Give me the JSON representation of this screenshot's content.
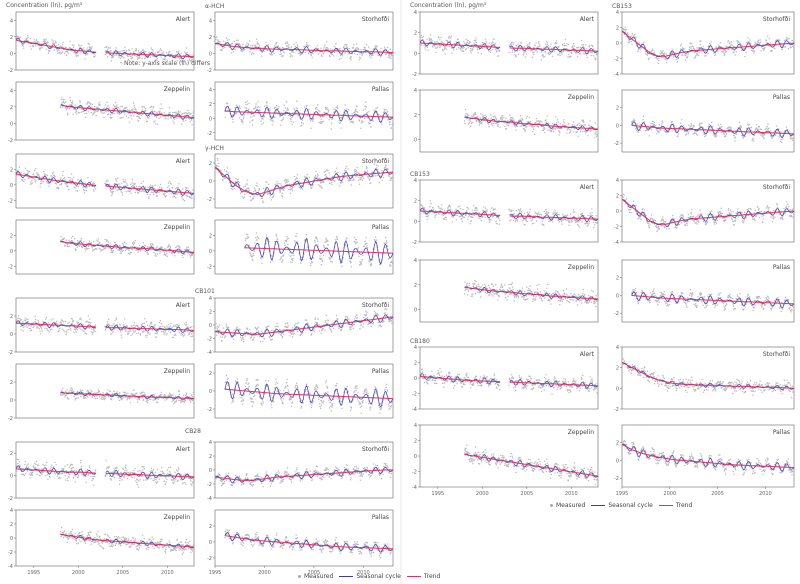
{
  "headers": {
    "left": "Concentration (ln), pg/m³",
    "right": "Concentration (ln), pg/m³"
  },
  "note": "Note: y-axis scale (ln) differs",
  "legend": {
    "measured": "Measured",
    "seasonal": "Seasonal cycle",
    "trend": "Trend"
  },
  "colors": {
    "measured": "#b8b8b8",
    "seasonal": "#3a3ab0",
    "trend": "#e0306a",
    "frame": "#666666"
  },
  "chart_data": [
    {
      "type": "line",
      "compound": "α-HCH",
      "station": "Alert",
      "xlim": [
        1993,
        2013
      ],
      "ylim": [
        -2,
        5
      ],
      "yticks": [
        -2,
        0,
        2,
        4
      ],
      "trend": [
        1.6,
        1.4,
        1.2,
        1.0,
        0.8,
        0.6,
        0.4,
        0.3,
        0.2,
        0.1,
        0.05,
        0.0,
        -0.05,
        -0.1,
        -0.15,
        -0.2,
        -0.25,
        -0.3,
        -0.35,
        -0.4
      ],
      "gap": [
        2002,
        2003
      ],
      "seasonal_amplitude": 0.3,
      "noise": 0.5
    },
    {
      "type": "line",
      "compound": "α-HCH",
      "station": "Zeppelin",
      "xlim": [
        1993,
        2013
      ],
      "ylim": [
        -2,
        5
      ],
      "yticks": [
        -2,
        0,
        2,
        4
      ],
      "start": 1998,
      "trend": [
        2.2,
        2.0,
        1.9,
        1.8,
        1.7,
        1.6,
        1.5,
        1.4,
        1.3,
        1.2,
        1.1,
        1.0,
        0.9,
        0.8,
        0.7
      ],
      "seasonal_amplitude": 0.3,
      "noise": 0.6
    },
    {
      "type": "line",
      "compound": "α-HCH",
      "station": "Storhofði",
      "xlim": [
        1995,
        2013
      ],
      "ylim": [
        -2,
        5
      ],
      "yticks": [
        -2,
        0,
        2,
        4
      ],
      "trend": [
        1.2,
        1.0,
        0.8,
        0.7,
        0.6,
        0.55,
        0.5,
        0.5,
        0.45,
        0.4,
        0.35,
        0.3,
        0.3,
        0.25,
        0.2,
        0.2,
        0.15,
        0.1
      ],
      "seasonal_amplitude": 0.4,
      "noise": 0.5
    },
    {
      "type": "line",
      "compound": "α-HCH",
      "station": "Pallas",
      "xlim": [
        1995,
        2013
      ],
      "ylim": [
        -3,
        5
      ],
      "yticks": [
        -2,
        0,
        2,
        4
      ],
      "start": 1996,
      "trend": [
        1.0,
        0.9,
        0.85,
        0.8,
        0.75,
        0.7,
        0.65,
        0.6,
        0.55,
        0.5,
        0.45,
        0.4,
        0.35,
        0.3,
        0.25,
        0.2,
        0.15
      ],
      "seasonal_amplitude": 0.8,
      "noise": 0.7
    },
    {
      "type": "line",
      "compound": "γ-HCH",
      "station": "Alert",
      "xlim": [
        1993,
        2013
      ],
      "ylim": [
        -3,
        4
      ],
      "yticks": [
        -2,
        0,
        2
      ],
      "trend": [
        1.4,
        1.2,
        1.0,
        0.8,
        0.6,
        0.45,
        0.3,
        0.15,
        0.0,
        -0.1,
        -0.2,
        -0.3,
        -0.4,
        -0.5,
        -0.6,
        -0.7,
        -0.8,
        -0.9,
        -1.0,
        -1.1
      ],
      "gap": [
        2002,
        2003
      ],
      "seasonal_amplitude": 0.4,
      "noise": 0.6
    },
    {
      "type": "line",
      "compound": "γ-HCH",
      "station": "Zeppelin",
      "xlim": [
        1993,
        2013
      ],
      "ylim": [
        -3,
        4
      ],
      "yticks": [
        -2,
        0,
        2
      ],
      "start": 1998,
      "trend": [
        1.2,
        1.0,
        0.9,
        0.8,
        0.7,
        0.6,
        0.5,
        0.4,
        0.35,
        0.3,
        0.2,
        0.1,
        0.0,
        -0.1,
        -0.2
      ],
      "seasonal_amplitude": 0.3,
      "noise": 0.5
    },
    {
      "type": "line",
      "compound": "γ-HCH",
      "station": "Storhofði",
      "xlim": [
        1995,
        2013
      ],
      "ylim": [
        -3,
        3
      ],
      "yticks": [
        -2,
        0,
        2
      ],
      "trend": [
        1.5,
        0.5,
        -0.5,
        -1.2,
        -1.5,
        -1.2,
        -0.8,
        -0.5,
        -0.3,
        -0.1,
        0.1,
        0.3,
        0.5,
        0.6,
        0.7,
        0.8,
        0.9,
        1.0
      ],
      "seasonal_amplitude": 0.5,
      "noise": 0.5
    },
    {
      "type": "line",
      "compound": "γ-HCH",
      "station": "Pallas",
      "xlim": [
        1995,
        2013
      ],
      "ylim": [
        -3,
        4
      ],
      "yticks": [
        -2,
        0,
        2
      ],
      "start": 1998,
      "trend": [
        0.4,
        0.35,
        0.3,
        0.25,
        0.2,
        0.15,
        0.1,
        0.05,
        0.0,
        -0.05,
        -0.1,
        -0.15,
        -0.2,
        -0.25,
        -0.3
      ],
      "seasonal_amplitude": 1.5,
      "noise": 0.5
    },
    {
      "type": "line",
      "compound": "CB101",
      "station": "Alert",
      "xlim": [
        1993,
        2013
      ],
      "ylim": [
        -2,
        4
      ],
      "yticks": [
        -2,
        0,
        2
      ],
      "trend": [
        1.2,
        1.15,
        1.1,
        1.05,
        1.0,
        0.95,
        0.9,
        0.85,
        0.8,
        0.75,
        0.7,
        0.7,
        0.65,
        0.6,
        0.6,
        0.55,
        0.5,
        0.5,
        0.45,
        0.4
      ],
      "gap": [
        2002,
        2003
      ],
      "seasonal_amplitude": 0.3,
      "noise": 0.6
    },
    {
      "type": "line",
      "compound": "CB101",
      "station": "Zeppelin",
      "xlim": [
        1993,
        2013
      ],
      "ylim": [
        -2,
        4
      ],
      "yticks": [
        -2,
        0,
        2
      ],
      "start": 1998,
      "trend": [
        0.8,
        0.75,
        0.7,
        0.65,
        0.6,
        0.55,
        0.5,
        0.45,
        0.4,
        0.35,
        0.3,
        0.3,
        0.25,
        0.2,
        0.2
      ],
      "seasonal_amplitude": 0.2,
      "noise": 0.4
    },
    {
      "type": "line",
      "compound": "CB101",
      "station": "Storhofði",
      "xlim": [
        1995,
        2013
      ],
      "ylim": [
        -4,
        4
      ],
      "yticks": [
        -4,
        -2,
        0,
        2,
        4
      ],
      "trend": [
        -1.0,
        -1.1,
        -1.2,
        -1.3,
        -1.4,
        -1.2,
        -1.0,
        -0.8,
        -0.6,
        -0.4,
        -0.2,
        0.0,
        0.2,
        0.4,
        0.6,
        0.8,
        1.0,
        1.2
      ],
      "seasonal_amplitude": 0.6,
      "noise": 0.6
    },
    {
      "type": "line",
      "compound": "CB101",
      "station": "Pallas",
      "xlim": [
        1995,
        2013
      ],
      "ylim": [
        -3,
        3
      ],
      "yticks": [
        -2,
        0,
        2
      ],
      "start": 1996,
      "trend": [
        0.2,
        0.1,
        0.0,
        -0.1,
        -0.2,
        -0.3,
        -0.35,
        -0.4,
        -0.45,
        -0.5,
        -0.55,
        -0.6,
        -0.65,
        -0.7,
        -0.75,
        -0.8,
        -0.85
      ],
      "seasonal_amplitude": 1.0,
      "noise": 0.5
    },
    {
      "type": "line",
      "compound": "CB153",
      "station": "Alert",
      "xlim": [
        1993,
        2013
      ],
      "ylim": [
        -2,
        4
      ],
      "yticks": [
        -2,
        0,
        2,
        4
      ],
      "trend": [
        1.0,
        0.95,
        0.9,
        0.85,
        0.8,
        0.75,
        0.7,
        0.65,
        0.6,
        0.55,
        0.5,
        0.5,
        0.45,
        0.4,
        0.4,
        0.35,
        0.3,
        0.3,
        0.25,
        0.2
      ],
      "gap": [
        2002,
        2003
      ],
      "seasonal_amplitude": 0.3,
      "noise": 0.5
    },
    {
      "type": "line",
      "compound": "CB153",
      "station": "Zeppelin",
      "xlim": [
        1993,
        2013
      ],
      "ylim": [
        -1,
        4
      ],
      "yticks": [
        0,
        2,
        4
      ],
      "start": 1998,
      "trend": [
        1.8,
        1.7,
        1.6,
        1.5,
        1.45,
        1.4,
        1.3,
        1.25,
        1.2,
        1.1,
        1.05,
        1.0,
        0.95,
        0.9,
        0.85
      ],
      "seasonal_amplitude": 0.2,
      "noise": 0.4
    },
    {
      "type": "line",
      "compound": "CB153",
      "station": "Storhofði",
      "xlim": [
        1995,
        2013
      ],
      "ylim": [
        -4,
        4
      ],
      "yticks": [
        -4,
        -2,
        0,
        2,
        4
      ],
      "trend": [
        1.5,
        0.5,
        -0.5,
        -1.5,
        -1.8,
        -1.5,
        -1.2,
        -1.0,
        -0.9,
        -0.8,
        -0.7,
        -0.6,
        -0.5,
        -0.4,
        -0.3,
        -0.2,
        -0.1,
        0.0
      ],
      "seasonal_amplitude": 0.5,
      "noise": 0.5
    },
    {
      "type": "line",
      "compound": "CB153",
      "station": "Pallas",
      "xlim": [
        1995,
        2013
      ],
      "ylim": [
        -3,
        4
      ],
      "yticks": [
        -2,
        0,
        2
      ],
      "start": 1996,
      "trend": [
        0.0,
        -0.1,
        -0.2,
        -0.3,
        -0.35,
        -0.4,
        -0.45,
        -0.5,
        -0.55,
        -0.6,
        -0.65,
        -0.7,
        -0.75,
        -0.8,
        -0.85,
        -0.9,
        -0.95
      ],
      "seasonal_amplitude": 0.5,
      "noise": 0.4
    },
    {
      "type": "line",
      "compound": "CB28",
      "station": "Alert",
      "xlim": [
        1993,
        2013
      ],
      "ylim": [
        -2,
        3
      ],
      "yticks": [
        -2,
        0,
        2
      ],
      "trend": [
        0.6,
        0.55,
        0.5,
        0.45,
        0.4,
        0.35,
        0.3,
        0.3,
        0.25,
        0.2,
        0.2,
        0.15,
        0.1,
        0.1,
        0.05,
        0.0,
        0.0,
        -0.05,
        -0.1,
        -0.1
      ],
      "gap": [
        2002,
        2003
      ],
      "seasonal_amplitude": 0.3,
      "noise": 0.5
    },
    {
      "type": "line",
      "compound": "CB28",
      "station": "Zeppelin",
      "xlim": [
        1993,
        2013
      ],
      "ylim": [
        -4,
        4
      ],
      "yticks": [
        -4,
        -2,
        0,
        2,
        4
      ],
      "start": 1998,
      "trend": [
        0.5,
        0.3,
        0.1,
        -0.1,
        -0.3,
        -0.4,
        -0.5,
        -0.6,
        -0.7,
        -0.8,
        -0.9,
        -1.0,
        -1.1,
        -1.2,
        -1.3
      ],
      "seasonal_amplitude": 0.3,
      "noise": 0.6
    },
    {
      "type": "line",
      "compound": "CB28",
      "station": "Storhofði",
      "xlim": [
        1995,
        2013
      ],
      "ylim": [
        -4,
        4
      ],
      "yticks": [
        -4,
        -2,
        0,
        2,
        4
      ],
      "trend": [
        -1.0,
        -1.2,
        -1.4,
        -1.5,
        -1.4,
        -1.2,
        -1.0,
        -0.9,
        -0.8,
        -0.7,
        -0.6,
        -0.5,
        -0.4,
        -0.3,
        -0.2,
        -0.1,
        0.0,
        0.0
      ],
      "seasonal_amplitude": 0.5,
      "noise": 0.5
    },
    {
      "type": "line",
      "compound": "CB28",
      "station": "Pallas",
      "xlim": [
        1995,
        2013
      ],
      "ylim": [
        -3,
        4
      ],
      "yticks": [
        -2,
        0,
        2
      ],
      "start": 1996,
      "trend": [
        0.8,
        0.6,
        0.4,
        0.2,
        0.1,
        0.0,
        -0.1,
        -0.2,
        -0.3,
        -0.4,
        -0.5,
        -0.6,
        -0.65,
        -0.7,
        -0.75,
        -0.8,
        -0.85
      ],
      "seasonal_amplitude": 0.5,
      "noise": 0.4
    },
    {
      "type": "line",
      "compound": "CB180",
      "station": "Alert",
      "xlim": [
        1993,
        2013
      ],
      "ylim": [
        -4,
        4
      ],
      "yticks": [
        -4,
        -2,
        0,
        2,
        4
      ],
      "trend": [
        0.2,
        0.1,
        0.0,
        -0.1,
        -0.2,
        -0.3,
        -0.35,
        -0.4,
        -0.45,
        -0.5,
        -0.55,
        -0.6,
        -0.65,
        -0.7,
        -0.75,
        -0.8,
        -0.85,
        -0.9,
        -0.95,
        -1.0
      ],
      "gap": [
        2002,
        2003
      ],
      "seasonal_amplitude": 0.4,
      "noise": 0.6
    },
    {
      "type": "line",
      "compound": "CB180",
      "station": "Zeppelin",
      "xlim": [
        1993,
        2013
      ],
      "ylim": [
        -4,
        4
      ],
      "yticks": [
        -4,
        -2,
        0,
        2,
        4
      ],
      "start": 1998,
      "trend": [
        0.2,
        0.0,
        -0.2,
        -0.4,
        -0.6,
        -0.8,
        -1.0,
        -1.2,
        -1.4,
        -1.6,
        -1.8,
        -2.0,
        -2.2,
        -2.4,
        -2.6
      ],
      "seasonal_amplitude": 0.4,
      "noise": 0.6
    },
    {
      "type": "line",
      "compound": "CB180",
      "station": "Storhofði",
      "xlim": [
        1995,
        2013
      ],
      "ylim": [
        -2,
        4
      ],
      "yticks": [
        -2,
        0,
        2,
        4
      ],
      "trend": [
        2.5,
        2.0,
        1.5,
        1.0,
        0.7,
        0.5,
        0.4,
        0.35,
        0.3,
        0.3,
        0.25,
        0.2,
        0.2,
        0.15,
        0.1,
        0.1,
        0.05,
        0.0
      ],
      "seasonal_amplitude": 0.2,
      "noise": 0.4
    },
    {
      "type": "line",
      "compound": "CB180",
      "station": "Pallas",
      "xlim": [
        1995,
        2013
      ],
      "ylim": [
        -3,
        4
      ],
      "yticks": [
        -2,
        0,
        2
      ],
      "start": 1995,
      "trend": [
        1.8,
        1.2,
        0.8,
        0.5,
        0.3,
        0.1,
        0.0,
        -0.1,
        -0.2,
        -0.3,
        -0.4,
        -0.5,
        -0.55,
        -0.6,
        -0.65,
        -0.7,
        -0.75,
        -0.8
      ],
      "seasonal_amplitude": 0.5,
      "noise": 0.4
    }
  ],
  "xticks_long": [
    1995,
    2000,
    2005,
    2010
  ],
  "xticks_short": [
    1995,
    2000,
    2005,
    2010
  ]
}
